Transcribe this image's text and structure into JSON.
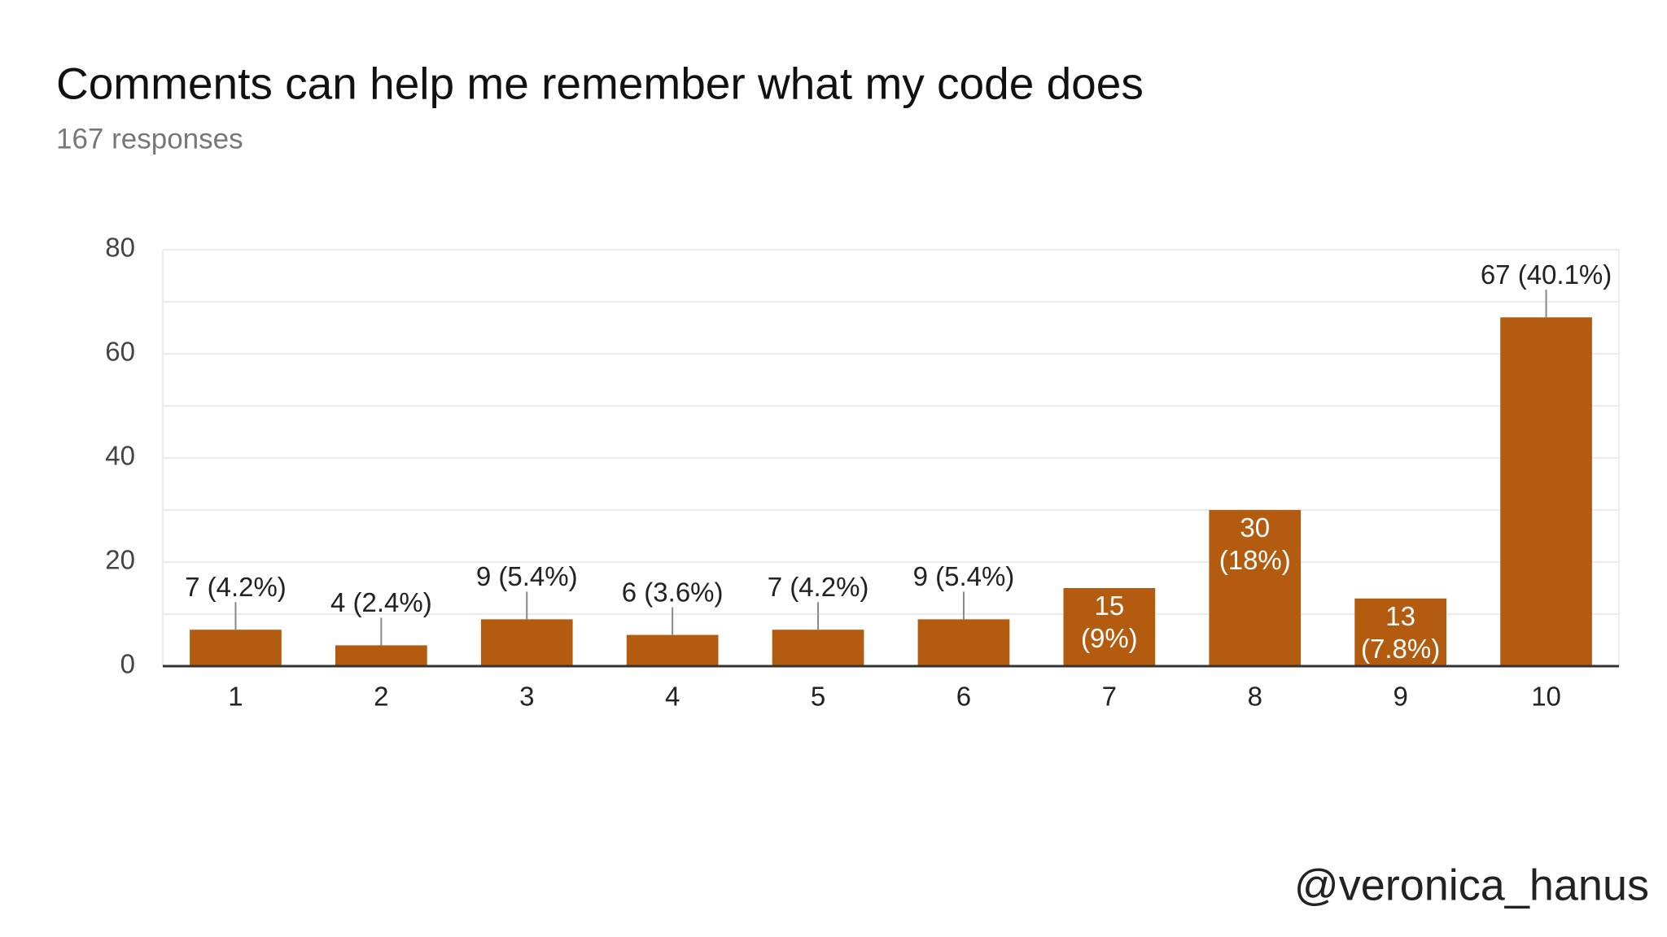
{
  "chart_data": {
    "type": "bar",
    "title": "Comments can help me remember what my code does",
    "subtitle": "167 responses",
    "categories": [
      "1",
      "2",
      "3",
      "4",
      "5",
      "6",
      "7",
      "8",
      "9",
      "10"
    ],
    "values": [
      7,
      4,
      9,
      6,
      7,
      9,
      15,
      30,
      13,
      67
    ],
    "value_labels": [
      "7 (4.2%)",
      "4 (2.4%)",
      "9 (5.4%)",
      "6 (3.6%)",
      "7 (4.2%)",
      "9 (5.4%)",
      "15 (9%)",
      "30 (18%)",
      "13 (7.8%)",
      "67 (40.1%)"
    ],
    "color": "#b35c0f",
    "ylim": [
      0,
      80
    ],
    "yticks": [
      0,
      20,
      40,
      60,
      80
    ],
    "grid": true,
    "watermark": "@veronica_hanus"
  }
}
